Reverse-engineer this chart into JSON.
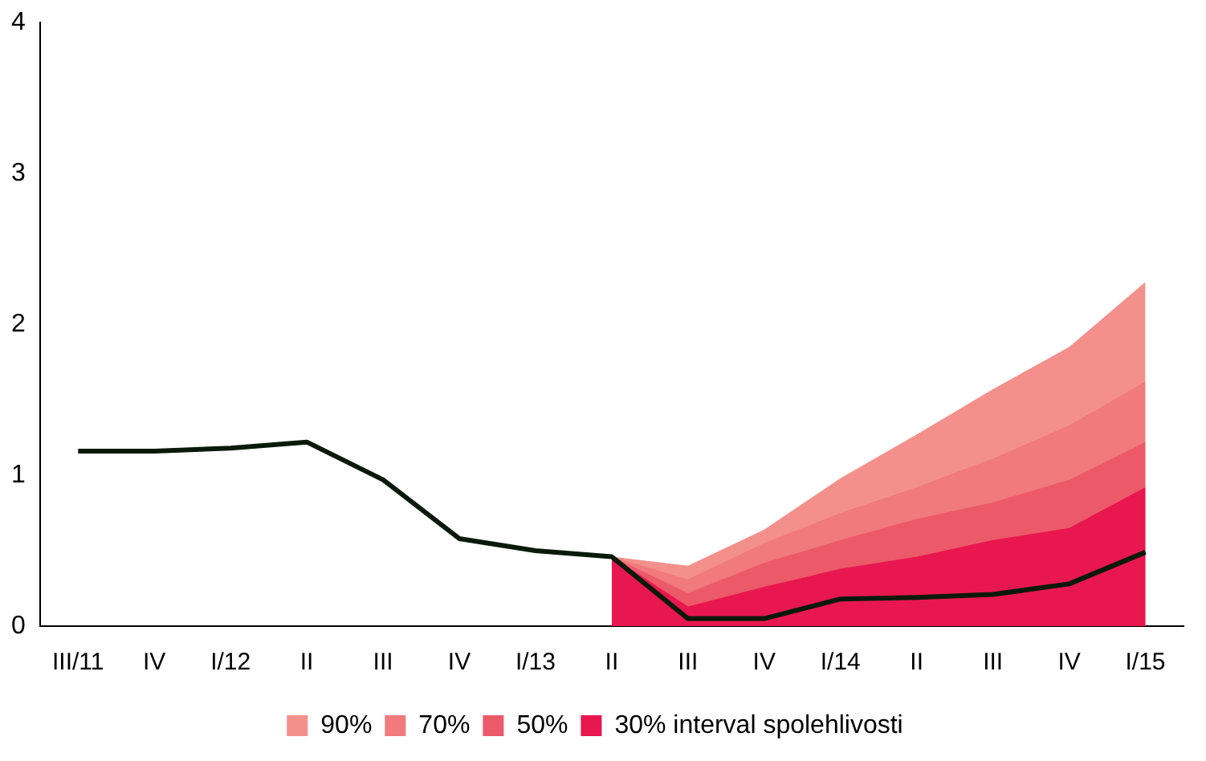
{
  "chart_data": {
    "type": "line",
    "categories": [
      "III/11",
      "IV",
      "I/12",
      "II",
      "III",
      "IV",
      "I/13",
      "II",
      "III",
      "IV",
      "I/14",
      "II",
      "III",
      "IV",
      "I/15"
    ],
    "ylim": [
      0,
      4
    ],
    "yticks": [
      0,
      1,
      2,
      3,
      4
    ],
    "grid": false,
    "legend": "bottom",
    "marker": "none",
    "line_style": "solid",
    "series": [
      {
        "name": "90%",
        "type": "area",
        "color": "#f4908c",
        "values": [
          null,
          null,
          null,
          null,
          null,
          null,
          null,
          0.46,
          0.4,
          0.64,
          0.98,
          1.27,
          1.57,
          1.85,
          2.28
        ]
      },
      {
        "name": "70%",
        "type": "area",
        "color": "#f07a7c",
        "values": [
          null,
          null,
          null,
          null,
          null,
          null,
          null,
          0.46,
          0.31,
          0.55,
          0.75,
          0.92,
          1.11,
          1.33,
          1.62
        ]
      },
      {
        "name": "50%",
        "type": "area",
        "color": "#ec5a6a",
        "values": [
          null,
          null,
          null,
          null,
          null,
          null,
          null,
          0.46,
          0.22,
          0.42,
          0.57,
          0.71,
          0.82,
          0.97,
          1.22
        ]
      },
      {
        "name": "30% interval spolehlivosti",
        "type": "area",
        "color": "#e8174f",
        "values": [
          null,
          null,
          null,
          null,
          null,
          null,
          null,
          0.46,
          0.13,
          0.26,
          0.38,
          0.46,
          0.57,
          0.65,
          0.92
        ]
      },
      {
        "type": "line",
        "color": "#0a1a0a",
        "values": [
          1.16,
          1.16,
          1.18,
          1.22,
          0.97,
          0.58,
          0.5,
          0.46,
          0.05,
          0.05,
          0.18,
          0.19,
          0.21,
          0.28,
          0.49
        ]
      }
    ]
  }
}
